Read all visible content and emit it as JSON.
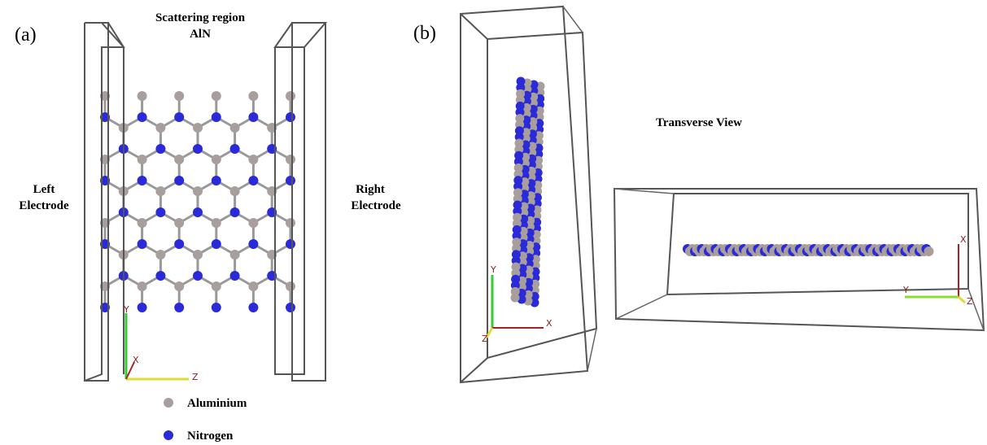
{
  "panel_a": {
    "label": "(a)",
    "title": [
      "Scattering region",
      "AlN"
    ],
    "left_label": [
      "Left",
      "Electrode"
    ],
    "right_label": [
      "Right",
      "Electrode"
    ],
    "axes": [
      "Y",
      "X",
      "Z"
    ],
    "legend": [
      "Aluminium",
      "Nitrogen"
    ]
  },
  "panel_b": {
    "label": "(b)",
    "annotation": "Transverse View",
    "side_axes": [
      "Y",
      "Z",
      "X"
    ],
    "top_axes": [
      "X",
      "Y",
      "Z"
    ]
  }
}
